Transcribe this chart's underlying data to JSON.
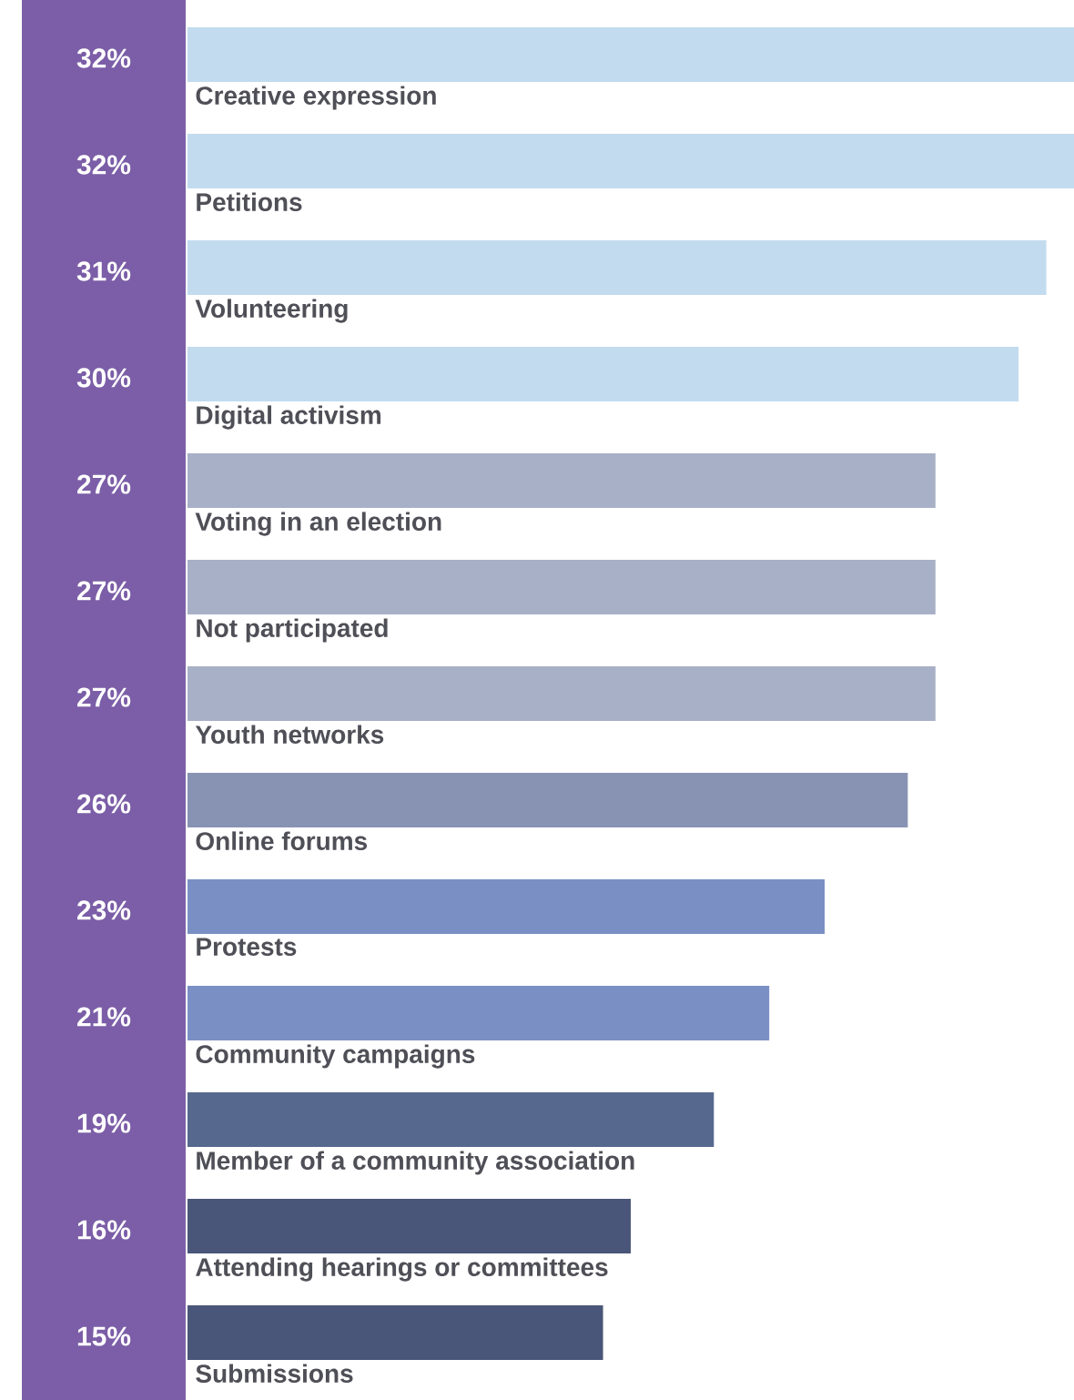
{
  "chart_data": {
    "type": "bar",
    "orientation": "horizontal",
    "categories": [
      "Creative expression",
      "Petitions",
      "Volunteering",
      "Digital activism",
      "Voting in an election",
      "Not participated",
      "Youth networks",
      "Online forums",
      "Protests",
      "Community campaigns",
      "Member of a community association",
      "Attending hearings or committees",
      "Submissions"
    ],
    "values": [
      32,
      32,
      31,
      30,
      27,
      27,
      27,
      26,
      23,
      21,
      19,
      16,
      15
    ],
    "value_labels": [
      "32%",
      "32%",
      "31%",
      "30%",
      "27%",
      "27%",
      "27%",
      "26%",
      "23%",
      "21%",
      "19%",
      "16%",
      "15%"
    ],
    "colors": [
      "#c2dbef",
      "#c2dbef",
      "#c2dbef",
      "#c2dbef",
      "#a8b0c7",
      "#a8b0c7",
      "#a8b0c7",
      "#8892b3",
      "#7a90c4",
      "#7a90c4",
      "#56688d",
      "#4a5679",
      "#4a5679"
    ]
  }
}
